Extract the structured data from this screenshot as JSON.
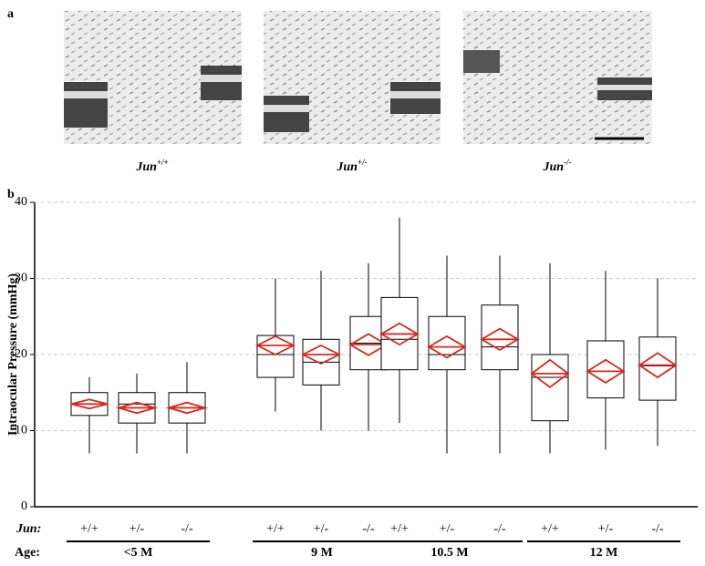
{
  "panel_a": {
    "label": "a",
    "captions": [
      {
        "base": "Jun",
        "sup": "+/+"
      },
      {
        "base": "Jun",
        "sup": "+/-"
      },
      {
        "base": "Jun",
        "sup": "-/-"
      }
    ]
  },
  "chart_data": {
    "type": "box",
    "panel_label": "b",
    "ylabel": "Intraocular Pressure (mmHg)",
    "ylim": [
      0,
      40
    ],
    "yticks": [
      0,
      10,
      20,
      30,
      40
    ],
    "grid": true,
    "genotype_row_label": "Jun:",
    "age_row_label": "Age:",
    "box_color": "#000000",
    "mean_color": "#d62a1e",
    "groups": [
      {
        "label": "<5 M",
        "boxes": [
          {
            "genotype": "+/+",
            "whisker_low": 7,
            "q1": 12,
            "median": 13.5,
            "q3": 15,
            "whisker_high": 17,
            "mean": 13.5,
            "ci_low": 12.9,
            "ci_high": 14.1
          },
          {
            "genotype": "+/-",
            "whisker_low": 7,
            "q1": 11,
            "median": 13.5,
            "q3": 15,
            "whisker_high": 17.5,
            "mean": 13,
            "ci_low": 12.3,
            "ci_high": 13.7
          },
          {
            "genotype": "-/-",
            "whisker_low": 7,
            "q1": 11,
            "median": 13,
            "q3": 15,
            "whisker_high": 19,
            "mean": 13,
            "ci_low": 12.3,
            "ci_high": 13.7
          }
        ]
      },
      {
        "label": "9 M",
        "boxes": [
          {
            "genotype": "+/+",
            "whisker_low": 12.5,
            "q1": 17,
            "median": 20,
            "q3": 22.5,
            "whisker_high": 30,
            "mean": 21.2,
            "ci_low": 20,
            "ci_high": 22.4
          },
          {
            "genotype": "+/-",
            "whisker_low": 10,
            "q1": 16,
            "median": 19,
            "q3": 22,
            "whisker_high": 31,
            "mean": 20,
            "ci_low": 18.8,
            "ci_high": 21.2
          },
          {
            "genotype": "-/-",
            "whisker_low": 10,
            "q1": 18,
            "median": 21.5,
            "q3": 25,
            "whisker_high": 32,
            "mean": 21.3,
            "ci_low": 19.9,
            "ci_high": 22.7
          }
        ]
      },
      {
        "label": "10.5 M",
        "boxes": [
          {
            "genotype": "+/+",
            "whisker_low": 11,
            "q1": 18,
            "median": 22,
            "q3": 27.5,
            "whisker_high": 38,
            "mean": 22.7,
            "ci_low": 21.3,
            "ci_high": 24.1
          },
          {
            "genotype": "+/-",
            "whisker_low": 7,
            "q1": 18,
            "median": 20,
            "q3": 25,
            "whisker_high": 33,
            "mean": 21,
            "ci_low": 19.6,
            "ci_high": 22.4
          },
          {
            "genotype": "-/-",
            "whisker_low": 7,
            "q1": 18,
            "median": 21,
            "q3": 26.5,
            "whisker_high": 33,
            "mean": 22,
            "ci_low": 20.6,
            "ci_high": 23.4
          }
        ]
      },
      {
        "label": "12 M",
        "boxes": [
          {
            "genotype": "+/+",
            "whisker_low": 7,
            "q1": 11.3,
            "median": 17,
            "q3": 20,
            "whisker_high": 32,
            "mean": 17.5,
            "ci_low": 15.7,
            "ci_high": 19.3
          },
          {
            "genotype": "+/-",
            "whisker_low": 7.5,
            "q1": 14.3,
            "median": 17.8,
            "q3": 21.8,
            "whisker_high": 31,
            "mean": 17.8,
            "ci_low": 16.3,
            "ci_high": 19.3
          },
          {
            "genotype": "-/-",
            "whisker_low": 8,
            "q1": 14,
            "median": 18.5,
            "q3": 22.3,
            "whisker_high": 30,
            "mean": 18.6,
            "ci_low": 17,
            "ci_high": 20.2
          }
        ]
      }
    ]
  }
}
